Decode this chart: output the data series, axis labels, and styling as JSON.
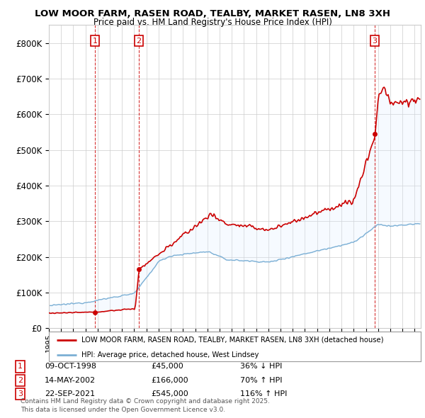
{
  "title1": "LOW MOOR FARM, RASEN ROAD, TEALBY, MARKET RASEN, LN8 3XH",
  "title2": "Price paid vs. HM Land Registry's House Price Index (HPI)",
  "ylim": [
    0,
    850000
  ],
  "yticks": [
    0,
    100000,
    200000,
    300000,
    400000,
    500000,
    600000,
    700000,
    800000
  ],
  "ytick_labels": [
    "£0",
    "£100K",
    "£200K",
    "£300K",
    "£400K",
    "£500K",
    "£600K",
    "£700K",
    "£800K"
  ],
  "xlim_start": 1995.0,
  "xlim_end": 2025.5,
  "sale_dates": [
    1998.78,
    2002.37,
    2021.73
  ],
  "sale_prices": [
    45000,
    166000,
    545000
  ],
  "sale_labels": [
    "1",
    "2",
    "3"
  ],
  "red_line_color": "#cc0000",
  "blue_line_color": "#7bafd4",
  "fill_color": "#ddeeff",
  "dashed_color": "#cc0000",
  "background_color": "#ffffff",
  "grid_color": "#cccccc",
  "legend_box_color": "#cc0000",
  "footer_text": "Contains HM Land Registry data © Crown copyright and database right 2025.\nThis data is licensed under the Open Government Licence v3.0.",
  "legend_label_red": "LOW MOOR FARM, RASEN ROAD, TEALBY, MARKET RASEN, LN8 3XH (detached house)",
  "legend_label_blue": "HPI: Average price, detached house, West Lindsey",
  "table_entries": [
    {
      "num": "1",
      "date": "09-OCT-1998",
      "price": "£45,000",
      "change": "36% ↓ HPI"
    },
    {
      "num": "2",
      "date": "14-MAY-2002",
      "price": "£166,000",
      "change": "70% ↑ HPI"
    },
    {
      "num": "3",
      "date": "22-SEP-2021",
      "price": "£545,000",
      "change": "116% ↑ HPI"
    }
  ]
}
